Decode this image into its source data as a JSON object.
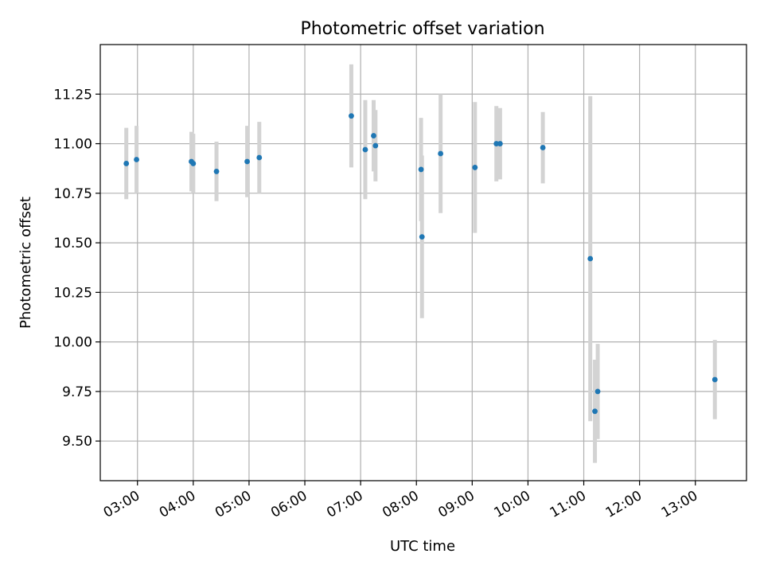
{
  "chart_data": {
    "type": "scatter",
    "title": "Photometric offset variation",
    "xlabel": "UTC time",
    "ylabel": "Photometric offset",
    "xlim": [
      "02:20",
      "13:55"
    ],
    "ylim": [
      9.3,
      11.5
    ],
    "x_ticks": [
      "03:00",
      "04:00",
      "05:00",
      "06:00",
      "07:00",
      "08:00",
      "09:00",
      "10:00",
      "11:00",
      "12:00",
      "13:00"
    ],
    "y_ticks": [
      "9.50",
      "9.75",
      "10.00",
      "10.25",
      "10.50",
      "10.75",
      "11.00",
      "11.25"
    ],
    "grid": true,
    "colors": {
      "point": "#1f77b4",
      "errorbar": "#d3d3d3",
      "grid": "#b0b0b0"
    },
    "points": [
      {
        "time": "02:48",
        "y": 10.9,
        "err": 0.18
      },
      {
        "time": "02:59",
        "y": 10.92,
        "err": 0.17
      },
      {
        "time": "03:58",
        "y": 10.91,
        "err": 0.15
      },
      {
        "time": "04:00",
        "y": 10.9,
        "err": 0.15
      },
      {
        "time": "04:25",
        "y": 10.86,
        "err": 0.15
      },
      {
        "time": "04:58",
        "y": 10.91,
        "err": 0.18
      },
      {
        "time": "05:11",
        "y": 10.93,
        "err": 0.18
      },
      {
        "time": "06:50",
        "y": 11.14,
        "err": 0.26
      },
      {
        "time": "07:05",
        "y": 10.97,
        "err": 0.25
      },
      {
        "time": "07:14",
        "y": 11.04,
        "err": 0.18
      },
      {
        "time": "07:16",
        "y": 10.99,
        "err": 0.18
      },
      {
        "time": "08:05",
        "y": 10.87,
        "err": 0.26
      },
      {
        "time": "08:06",
        "y": 10.53,
        "err": 0.41
      },
      {
        "time": "08:26",
        "y": 10.95,
        "err": 0.3
      },
      {
        "time": "09:03",
        "y": 10.88,
        "err": 0.33
      },
      {
        "time": "09:26",
        "y": 11.0,
        "err": 0.19
      },
      {
        "time": "09:30",
        "y": 11.0,
        "err": 0.18
      },
      {
        "time": "10:16",
        "y": 10.98,
        "err": 0.18
      },
      {
        "time": "11:07",
        "y": 10.42,
        "err": 0.82
      },
      {
        "time": "11:12",
        "y": 9.65,
        "err": 0.26
      },
      {
        "time": "11:15",
        "y": 9.75,
        "err": 0.24
      },
      {
        "time": "13:21",
        "y": 9.81,
        "err": 0.2
      }
    ]
  }
}
